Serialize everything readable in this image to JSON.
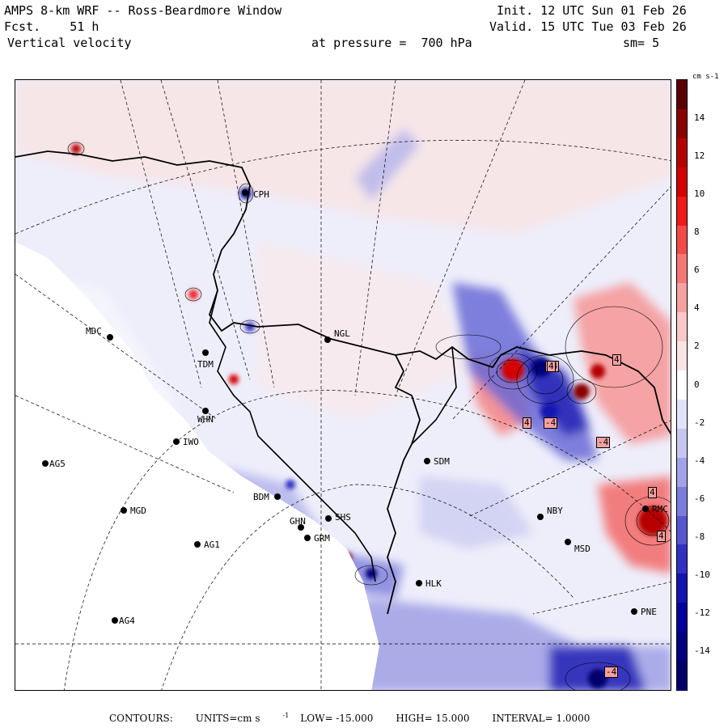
{
  "header": {
    "title": "AMPS 8-km WRF -- Ross-Beardmore Window",
    "forecast": "Fcst.    51 h",
    "variable": "Vertical velocity",
    "pressure": "at pressure =  700 hPa",
    "init": "Init. 12 UTC Sun 01 Feb 26",
    "valid": "Valid. 15 UTC Tue 03 Feb 26",
    "smoothing": "sm= 5"
  },
  "stations": [
    {
      "id": "CPH",
      "label": "CPH"
    },
    {
      "id": "NGL",
      "label": "NGL"
    },
    {
      "id": "MDC",
      "label": "MDC"
    },
    {
      "id": "TDM",
      "label": "TDM"
    },
    {
      "id": "WHN",
      "label": "WHN"
    },
    {
      "id": "IWO",
      "label": "IWO"
    },
    {
      "id": "AG5",
      "label": "AG5"
    },
    {
      "id": "SDM",
      "label": "SDM"
    },
    {
      "id": "BDM",
      "label": "BDM"
    },
    {
      "id": "SHS",
      "label": "SHS"
    },
    {
      "id": "MGD",
      "label": "MGD"
    },
    {
      "id": "GHN",
      "label": "GHN"
    },
    {
      "id": "GRM",
      "label": "GRM"
    },
    {
      "id": "AG1",
      "label": "AG1"
    },
    {
      "id": "NBY",
      "label": "NBY"
    },
    {
      "id": "MSD",
      "label": "MSD"
    },
    {
      "id": "HLK",
      "label": "HLK"
    },
    {
      "id": "PNE",
      "label": "PNE"
    },
    {
      "id": "AG4",
      "label": "AG4"
    },
    {
      "id": "RMC",
      "label": "RMC"
    }
  ],
  "contour_labels": [
    "4",
    "-4",
    "4",
    "-4",
    "-4",
    "4",
    "4",
    "-4",
    "4"
  ],
  "colorbar": {
    "units": "cm s-1",
    "ticks": [
      "14",
      "12",
      "10",
      "8",
      "6",
      "4",
      "2",
      "0",
      "-2",
      "-4",
      "-6",
      "-8",
      "-10",
      "-12",
      "-14"
    ],
    "colors": [
      "#5a0000",
      "#8b0000",
      "#b50000",
      "#d40000",
      "#ee1a1a",
      "#f24a4a",
      "#f47676",
      "#f6a0a0",
      "#f9c8c8",
      "#fbe4e4",
      "#ffffff",
      "#e2e2f8",
      "#c6c6f1",
      "#a2a2e8",
      "#7c7cdd",
      "#5656d0",
      "#3030c2",
      "#1414b0",
      "#00009a",
      "#000080",
      "#00006a"
    ]
  },
  "footer": {
    "contours": "CONTOURS:",
    "units_label": "UNITS=cm s",
    "units_exp": "-1",
    "low": "LOW= -15.000",
    "high": "HIGH=  15.000",
    "interval": "INTERVAL=   1.0000"
  }
}
